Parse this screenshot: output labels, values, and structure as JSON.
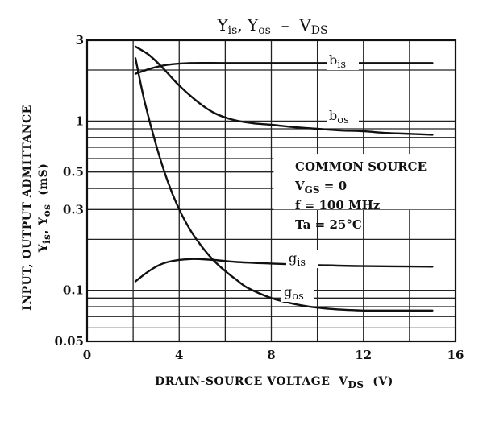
{
  "chart_data": {
    "type": "line",
    "title": {
      "main": "Y",
      "sub1": "is",
      "sep": ", Y",
      "sub2": "os",
      "tail": "  –  V",
      "sub3": "DS"
    },
    "xlabel": {
      "main": "DRAIN-SOURCE VOLTAGE  V",
      "sub": "DS",
      "unit": "  (V)"
    },
    "ylabel": {
      "line1": "INPUT, OUTPUT ADMITTANCE",
      "line2": {
        "a": "Y",
        "a_sub": "is",
        "sep": ", Y",
        "b_sub": "os",
        "unit": "  (mS)"
      }
    },
    "x_scale": "linear",
    "y_scale": "log",
    "xlim": [
      0,
      16
    ],
    "ylim": [
      0.05,
      3
    ],
    "x_ticks": [
      0,
      4,
      8,
      12,
      16
    ],
    "x_tick_labels": [
      "0",
      "4",
      "8",
      "12",
      "16"
    ],
    "x_gridlines": [
      2,
      4,
      6,
      8,
      10,
      12,
      14
    ],
    "y_ticks": [
      0.05,
      0.1,
      0.3,
      0.5,
      1,
      3
    ],
    "y_tick_labels": [
      "0.05",
      "0.1",
      "0.3",
      "0.5",
      "1",
      "3"
    ],
    "y_gridlines": [
      0.06,
      0.07,
      0.08,
      0.09,
      0.1,
      0.2,
      0.3,
      0.4,
      0.5,
      0.6,
      0.7,
      0.8,
      0.9,
      1,
      2
    ],
    "series": [
      {
        "name": "bis",
        "label_main": "b",
        "label_sub": "is",
        "x": [
          2.1,
          2.8,
          3.5,
          4.5,
          6,
          8,
          10,
          12,
          15
        ],
        "y": [
          1.9,
          2.05,
          2.15,
          2.2,
          2.2,
          2.2,
          2.2,
          2.2,
          2.2
        ]
      },
      {
        "name": "bos",
        "label_main": "b",
        "label_sub": "os",
        "x": [
          2.1,
          2.7,
          3.3,
          4,
          4.8,
          5.5,
          6.3,
          7.2,
          8,
          9,
          10,
          11,
          12,
          13,
          14,
          15
        ],
        "y": [
          2.75,
          2.45,
          2.05,
          1.62,
          1.3,
          1.12,
          1.02,
          0.97,
          0.95,
          0.92,
          0.9,
          0.88,
          0.87,
          0.85,
          0.84,
          0.83
        ]
      },
      {
        "name": "gis",
        "label_main": "g",
        "label_sub": "is",
        "x": [
          2.1,
          2.8,
          3.5,
          4.5,
          5.5,
          6.5,
          8,
          10,
          12,
          15
        ],
        "y": [
          0.113,
          0.133,
          0.147,
          0.153,
          0.151,
          0.147,
          0.144,
          0.141,
          0.139,
          0.138
        ]
      },
      {
        "name": "gos",
        "label_main": "g",
        "label_sub": "os",
        "x": [
          2.1,
          2.5,
          3,
          3.5,
          4,
          4.5,
          5,
          5.5,
          6,
          6.5,
          7,
          8,
          9,
          10,
          11,
          12,
          13,
          15
        ],
        "y": [
          2.35,
          1.3,
          0.72,
          0.44,
          0.3,
          0.225,
          0.18,
          0.15,
          0.13,
          0.115,
          0.103,
          0.09,
          0.083,
          0.079,
          0.077,
          0.076,
          0.076,
          0.076
        ]
      }
    ],
    "conditions": [
      {
        "text": "COMMON SOURCE"
      },
      {
        "main": "V",
        "sub": "GS",
        "text": " = 0"
      },
      {
        "text": "f = 100 MHz"
      },
      {
        "text": "Ta = 25°C"
      }
    ]
  }
}
